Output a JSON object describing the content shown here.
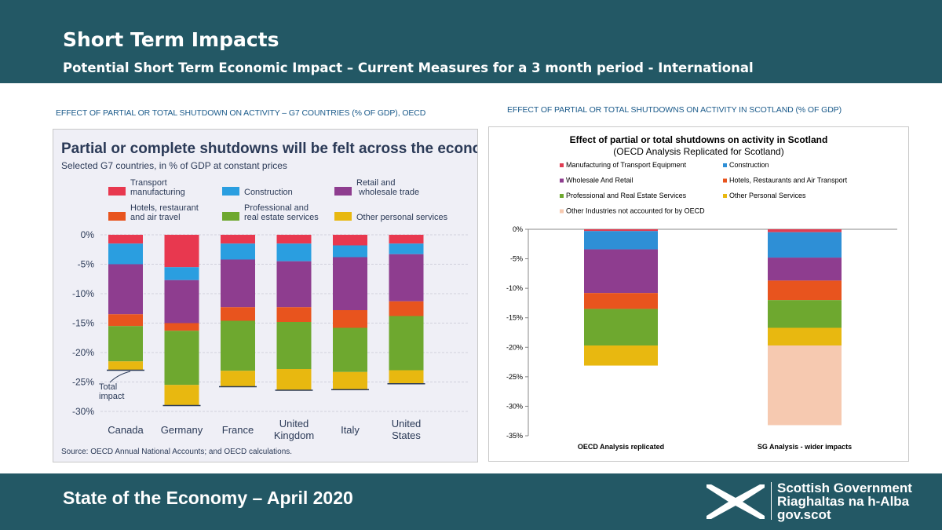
{
  "header": {
    "title": "Short Term Impacts",
    "subtitle": "Potential Short Term Economic Impact – Current Measures for a 3 month period - International"
  },
  "left_caption": "EFFECT OF PARTIAL OR TOTAL SHUTDOWN ON ACTIVITY – G7 COUNTRIES (% OF GDP), OECD",
  "right_caption": "EFFECT OF PARTIAL OR TOTAL SHUTDOWNS ON ACTIVITY IN SCOTLAND (% OF GDP)",
  "footer": {
    "title": "State of the Economy – April 2020",
    "logo_line1": "Scottish Government",
    "logo_line2": "Riaghaltas na h-Alba",
    "logo_line3": "gov.scot"
  },
  "chart_data": [
    {
      "type": "bar",
      "stacked": true,
      "title": "Partial or complete shutdowns will be felt across the economy",
      "subtitle": "Selected G7 countries, in % of GDP at constant prices",
      "source": "Source: OECD Annual National Accounts; and OECD calculations.",
      "annotation": "Total impact",
      "categories": [
        "Canada",
        "Germany",
        "France",
        "United Kingdom",
        "Italy",
        "United States"
      ],
      "ylim": [
        -30,
        0
      ],
      "yticks": [
        "0%",
        "-5%",
        "-10%",
        "-15%",
        "-20%",
        "-25%",
        "-30%"
      ],
      "legend": [
        "Transport manufacturing",
        "Construction",
        "Retail and wholesale trade",
        "Hotels, restaurant and air travel",
        "Professional and real estate services",
        "Other personal services"
      ],
      "series": [
        {
          "name": "Transport manufacturing",
          "color": "#e8384f",
          "values": [
            -1.5,
            -5.5,
            -1.5,
            -1.5,
            -1.8,
            -1.5
          ]
        },
        {
          "name": "Construction",
          "color": "#2a9ee0",
          "values": [
            -3.5,
            -2.2,
            -2.7,
            -3.0,
            -2.0,
            -1.8
          ]
        },
        {
          "name": "Retail and wholesale trade",
          "color": "#8e3d8f",
          "values": [
            -8.5,
            -7.3,
            -8.1,
            -7.8,
            -9.0,
            -8.0
          ]
        },
        {
          "name": "Hotels, restaurant and air travel",
          "color": "#e8541e",
          "values": [
            -2.0,
            -1.3,
            -2.3,
            -2.5,
            -3.0,
            -2.5
          ]
        },
        {
          "name": "Professional and real estate services",
          "color": "#6ea82f",
          "values": [
            -6.0,
            -9.2,
            -8.5,
            -8.0,
            -7.5,
            -9.2
          ]
        },
        {
          "name": "Other personal services",
          "color": "#e8b810",
          "values": [
            -1.5,
            -3.5,
            -2.7,
            -3.6,
            -3.0,
            -2.3
          ]
        }
      ]
    },
    {
      "type": "bar",
      "stacked": true,
      "title": "Effect of partial or total shutdowns on activity in Scotland",
      "subtitle": "(OECD Analysis Replicated for Scotland)",
      "categories": [
        "OECD Analysis replicated",
        "SG Analysis - wider impacts"
      ],
      "ylim": [
        -35,
        0
      ],
      "yticks": [
        "0%",
        "-5%",
        "-10%",
        "-15%",
        "-20%",
        "-25%",
        "-30%",
        "-35%"
      ],
      "series": [
        {
          "name": "Manufacturing of Transport Equipment",
          "color": "#e03c52",
          "values": [
            -0.3,
            -0.5
          ]
        },
        {
          "name": "Construction",
          "color": "#2e8fd6",
          "values": [
            -3.1,
            -4.3
          ]
        },
        {
          "name": "Wholesale And Retail",
          "color": "#8e3d8f",
          "values": [
            -7.4,
            -3.9
          ]
        },
        {
          "name": "Hotels, Restaurants and Air Transport",
          "color": "#e8541e",
          "values": [
            -2.7,
            -3.3
          ]
        },
        {
          "name": "Professional  and Real Estate Services",
          "color": "#6ea82f",
          "values": [
            -6.2,
            -4.7
          ]
        },
        {
          "name": "Other Personal Services",
          "color": "#e8b810",
          "values": [
            -3.4,
            -3.0
          ]
        },
        {
          "name": "Other Industries not accounted for by OECD",
          "color": "#f6c9b0",
          "values": [
            0,
            -13.5
          ]
        }
      ]
    }
  ]
}
